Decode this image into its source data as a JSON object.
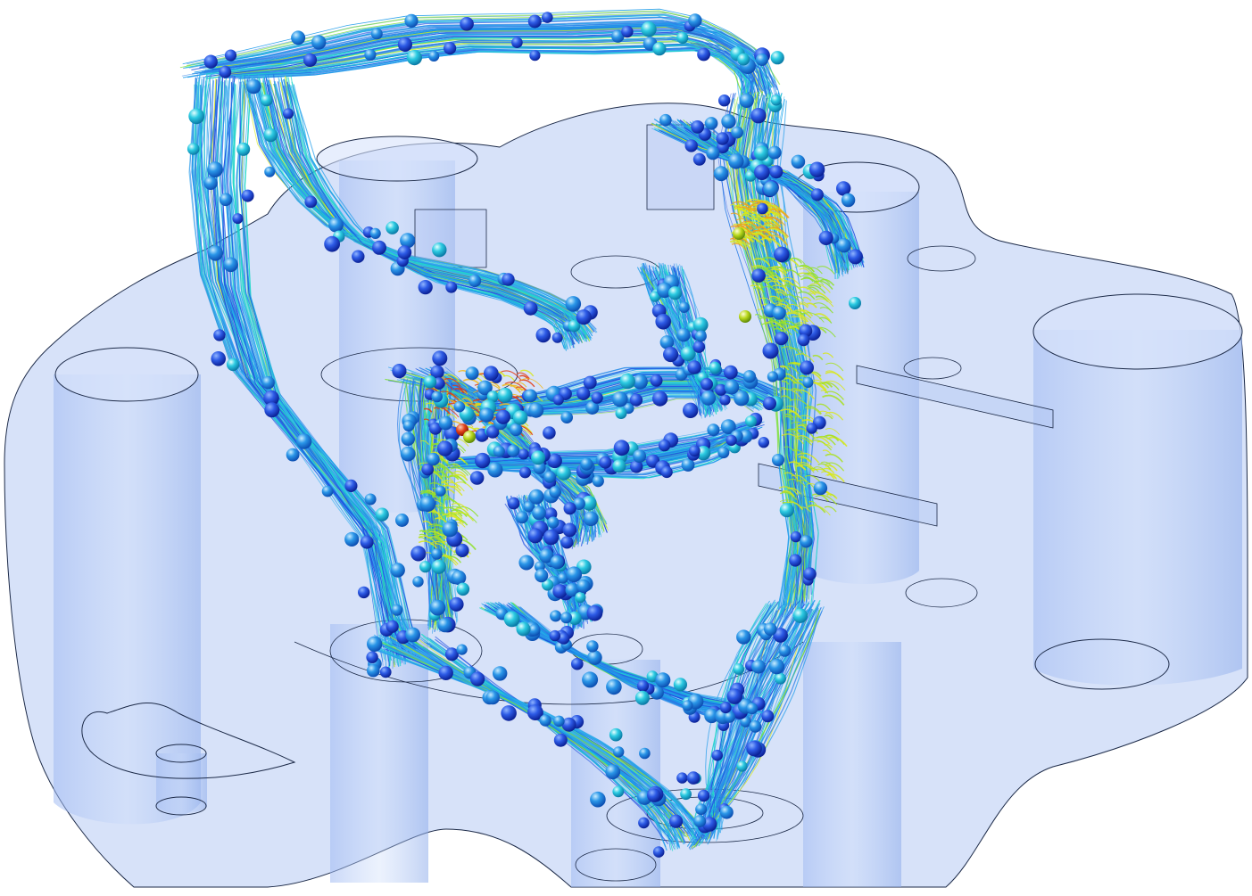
{
  "scene": {
    "subject": "cfd-streamlines-over-translucent-manifold",
    "colors": {
      "background": "#ffffff",
      "housing_fill": "#b9cdf5",
      "housing_edge": "#1c2a48",
      "low_velocity": "#1f4fe0",
      "mid_velocity": "#1e9bea",
      "medium_high": "#22d8c8",
      "high_velocity": "#d8e81a",
      "peak_velocity": "#e23a12"
    },
    "particle_count": 520,
    "streamline_count": 1200
  }
}
